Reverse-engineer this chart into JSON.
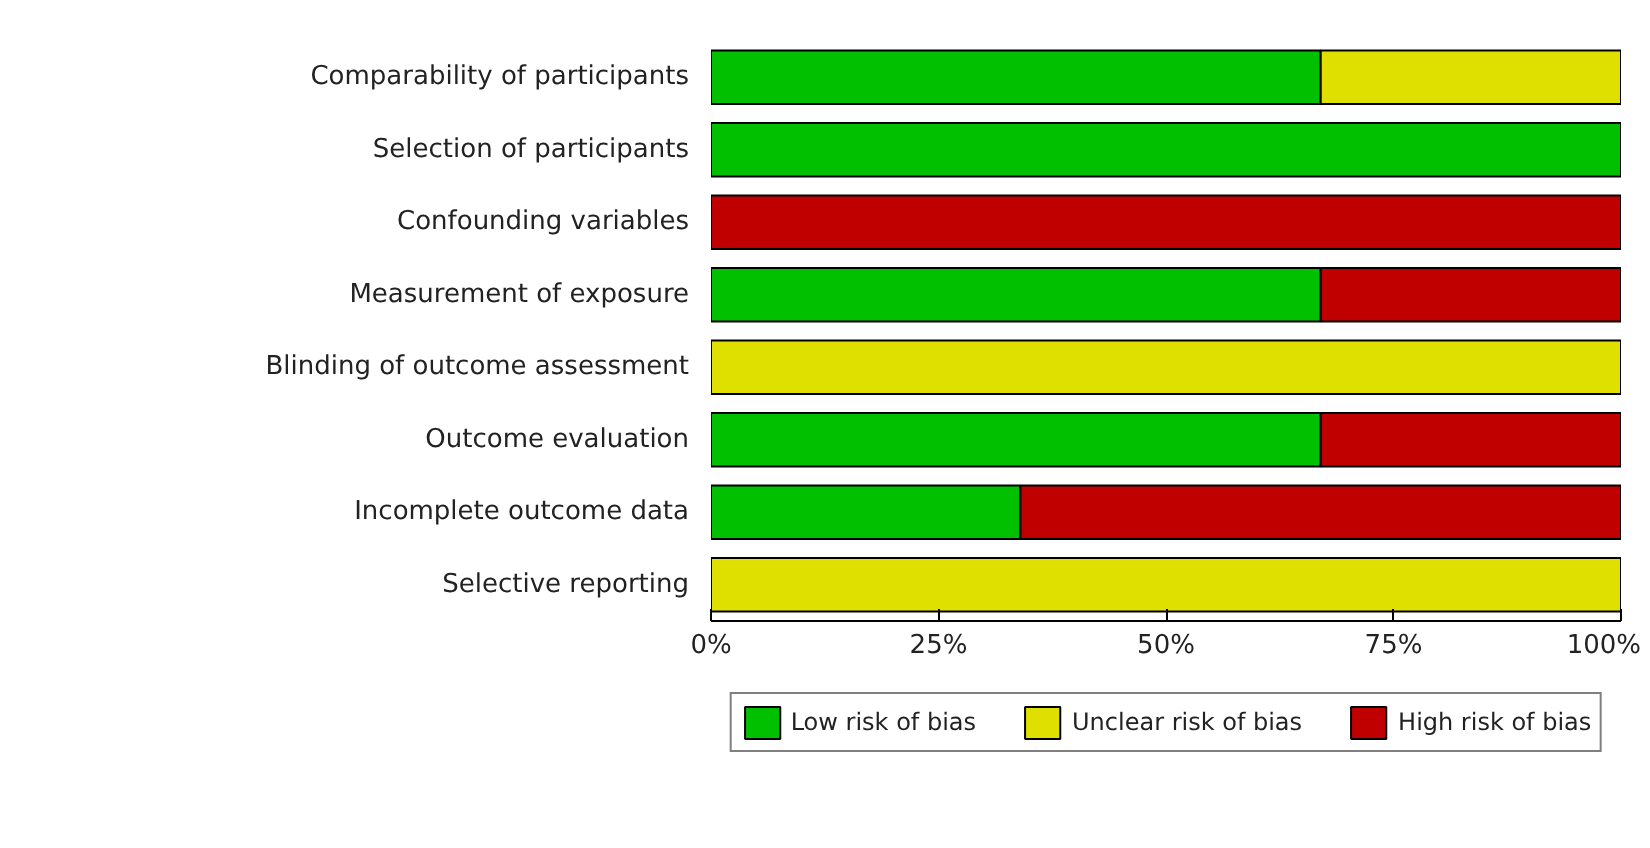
{
  "chart_data": {
    "type": "bar",
    "orientation": "horizontal",
    "stacked": true,
    "categories": [
      "Comparability of participants",
      "Selection of participants",
      "Confounding variables",
      "Measurement of exposure",
      "Blinding of outcome assessment",
      "Outcome evaluation",
      "Incomplete outcome data",
      "Selective reporting"
    ],
    "series": [
      {
        "name": "Low risk of bias",
        "color": "#00c000",
        "values": [
          67,
          100,
          0,
          67,
          0,
          67,
          34,
          0
        ]
      },
      {
        "name": "Unclear risk of bias",
        "color": "#e0e000",
        "values": [
          33,
          0,
          0,
          0,
          100,
          0,
          0,
          100
        ]
      },
      {
        "name": "High risk of bias",
        "color": "#c00000",
        "values": [
          0,
          0,
          100,
          33,
          0,
          33,
          66,
          0
        ]
      }
    ],
    "xlim": [
      0,
      100
    ],
    "xticks": [
      {
        "value": 0,
        "label": "0%"
      },
      {
        "value": 25,
        "label": "25%"
      },
      {
        "value": 50,
        "label": "50%"
      },
      {
        "value": 75,
        "label": "75%"
      },
      {
        "value": 100,
        "label": "100%"
      }
    ],
    "grid": false,
    "legend": "bottom"
  }
}
